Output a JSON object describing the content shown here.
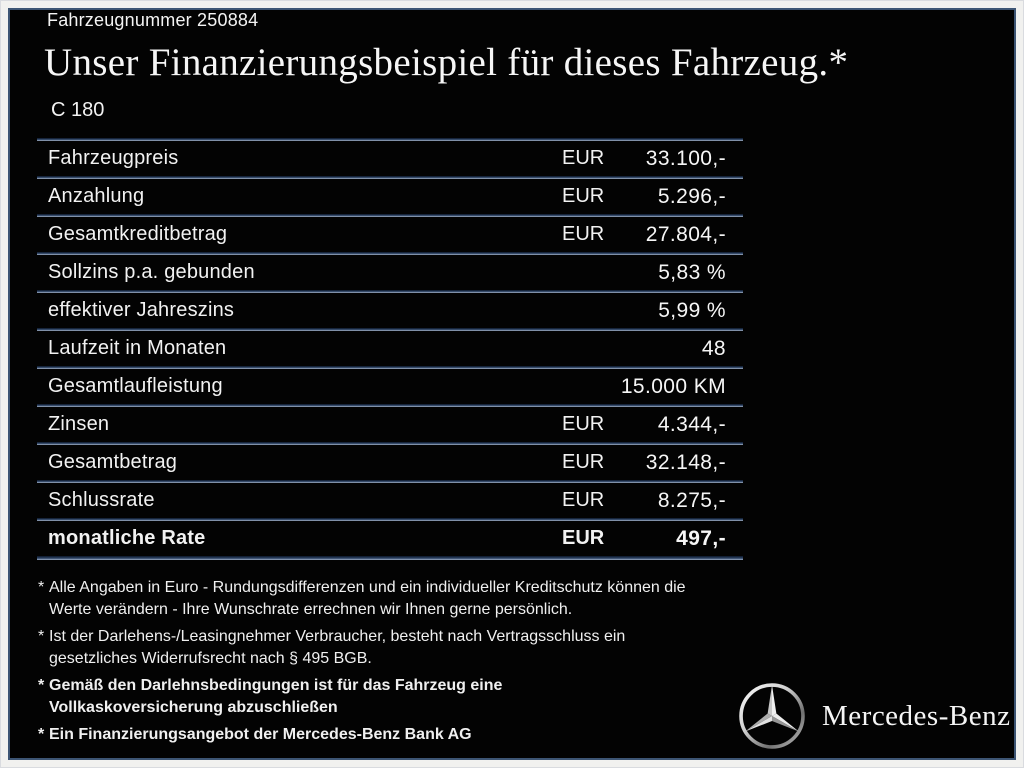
{
  "header": {
    "vehicle_number": "Fahrzeugnummer 250884",
    "title": "Unser Finanzierungsbeispiel für dieses Fahrzeug.*",
    "model": "C 180"
  },
  "table": {
    "rows": [
      {
        "label": "Fahrzeugpreis",
        "currency": "EUR",
        "value": "33.100,-",
        "bold": false
      },
      {
        "label": "Anzahlung",
        "currency": "EUR",
        "value": "5.296,-",
        "bold": false
      },
      {
        "label": "Gesamtkreditbetrag",
        "currency": "EUR",
        "value": "27.804,-",
        "bold": false
      },
      {
        "label": "Sollzins p.a. gebunden",
        "currency": "",
        "value": "5,83 %",
        "bold": false
      },
      {
        "label": "effektiver Jahreszins",
        "currency": "",
        "value": "5,99 %",
        "bold": false
      },
      {
        "label": "Laufzeit in Monaten",
        "currency": "",
        "value": "48",
        "bold": false
      },
      {
        "label": "Gesamtlaufleistung",
        "currency": "",
        "value": "15.000 KM",
        "bold": false
      },
      {
        "label": "Zinsen",
        "currency": "EUR",
        "value": "4.344,-",
        "bold": false
      },
      {
        "label": "Gesamtbetrag",
        "currency": "EUR",
        "value": "32.148,-",
        "bold": false
      },
      {
        "label": "Schlussrate",
        "currency": "EUR",
        "value": "8.275,-",
        "bold": false
      },
      {
        "label": "monatliche Rate",
        "currency": "EUR",
        "value": "497,-",
        "bold": true
      }
    ]
  },
  "footnotes": [
    {
      "marker": "*",
      "bold": false,
      "lines": [
        "Alle Angaben in Euro - Rundungsdifferenzen und ein individueller Kreditschutz können die",
        "Werte verändern - Ihre Wunschrate errechnen wir Ihnen gerne persönlich."
      ]
    },
    {
      "marker": "*",
      "bold": false,
      "lines": [
        "Ist der Darlehens-/Leasingnehmer Verbraucher, besteht nach Vertragsschluss ein",
        "gesetzliches Widerrufsrecht nach § 495 BGB."
      ]
    },
    {
      "marker": "*",
      "bold": true,
      "lines": [
        "Gemäß den Darlehnsbedingungen ist für das Fahrzeug eine",
        "Vollkaskoversicherung abzuschließen"
      ]
    },
    {
      "marker": "*",
      "bold": true,
      "lines": [
        "Ein Finanzierungsangebot der Mercedes-Benz Bank AG"
      ]
    }
  ],
  "brand": {
    "logo_icon": "mercedes-star-icon",
    "name": "Mercedes-Benz"
  },
  "colors": {
    "background": "#030303",
    "border_outer": "#f1f1ef",
    "border_inner": "#3d5574",
    "text": "#f2f2f2",
    "separator_dark": "#0a1526",
    "separator_mid": "#2e4466",
    "separator_light": "#a9b6ca"
  }
}
